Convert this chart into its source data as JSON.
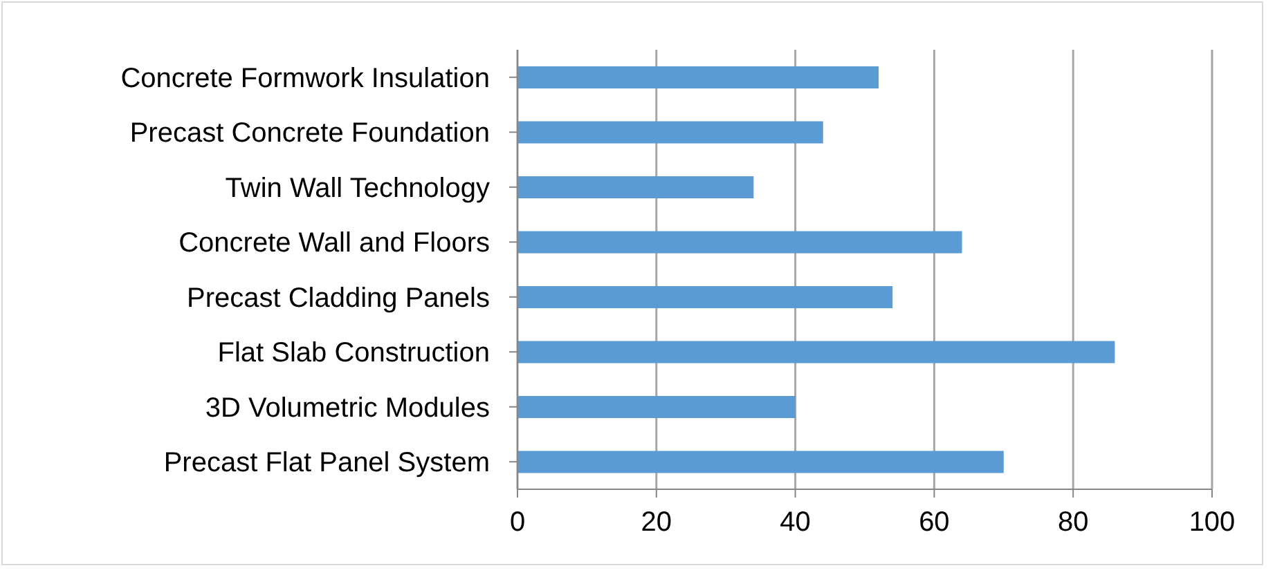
{
  "chart_data": {
    "type": "bar",
    "orientation": "horizontal",
    "categories": [
      "Concrete Formwork Insulation",
      "Precast Concrete Foundation",
      "Twin Wall Technology",
      "Concrete Wall and Floors",
      "Precast Cladding Panels",
      "Flat Slab Construction",
      "3D Volumetric Modules",
      "Precast Flat Panel System"
    ],
    "values": [
      52,
      44,
      34,
      64,
      54,
      86,
      40,
      70
    ],
    "color": "#5b9bd5",
    "xlim": [
      0,
      100
    ],
    "xticks": [
      0,
      20,
      40,
      60,
      80,
      100
    ],
    "grid": "x",
    "legend": false
  }
}
